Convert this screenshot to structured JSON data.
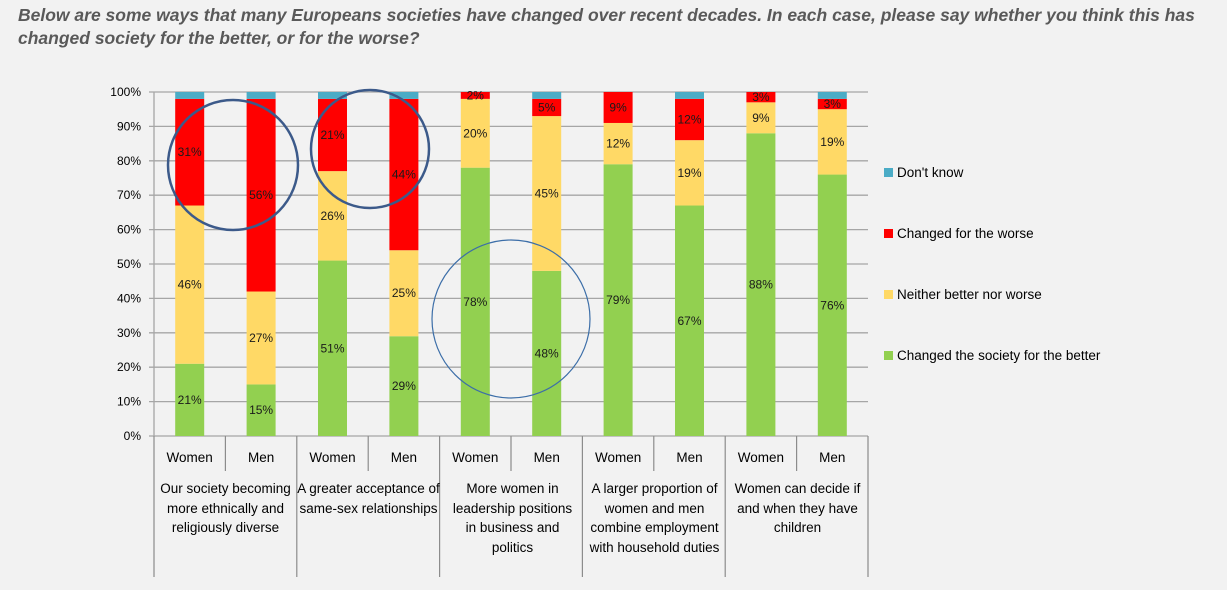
{
  "title": "Below are some ways that many Europeans societies have changed over recent decades. In each case, please say whether you think this has changed society for the better, or for the worse?",
  "chart_data": {
    "type": "bar",
    "stacked": true,
    "ylim": [
      0,
      100
    ],
    "yticks": [
      "0%",
      "10%",
      "20%",
      "30%",
      "40%",
      "50%",
      "60%",
      "70%",
      "80%",
      "90%",
      "100%"
    ],
    "grid": true,
    "legend_position": "right",
    "categories": [
      "Women",
      "Men",
      "Women",
      "Men",
      "Women",
      "Men",
      "Women",
      "Men",
      "Women",
      "Men"
    ],
    "groups": [
      "Our society becoming more ethnically and religiously diverse",
      "A greater acceptance of same-sex relationships",
      "More women in leadership positions in business and politics",
      "A larger proportion of women and men combine employment with household duties",
      "Women can decide if and when they have children"
    ],
    "series": [
      {
        "name": "Changed the society for the better",
        "color": "#92d050",
        "values": [
          21,
          15,
          51,
          29,
          78,
          48,
          79,
          67,
          88,
          76
        ]
      },
      {
        "name": "Neither better nor worse",
        "color": "#ffd966",
        "values": [
          46,
          27,
          26,
          25,
          20,
          45,
          12,
          19,
          9,
          19
        ]
      },
      {
        "name": "Changed for the worse",
        "color": "#ff0000",
        "values": [
          31,
          56,
          21,
          44,
          2,
          5,
          9,
          12,
          3,
          3
        ]
      },
      {
        "name": "Don't know",
        "color": "#4bacc6",
        "values": [
          2,
          2,
          2,
          2,
          0,
          2,
          0,
          2,
          0,
          2
        ]
      }
    ],
    "annotations": [
      "circle around 'worse' bars of group 1",
      "circle around 'worse' bars of group 2",
      "circle around 'better' bars of group 3"
    ]
  },
  "legend": [
    {
      "label": "Don't know",
      "color": "#4bacc6"
    },
    {
      "label": "Changed for the worse",
      "color": "#ff0000"
    },
    {
      "label": "Neither better nor worse",
      "color": "#ffd966"
    },
    {
      "label": "Changed the society for the better",
      "color": "#92d050"
    }
  ]
}
